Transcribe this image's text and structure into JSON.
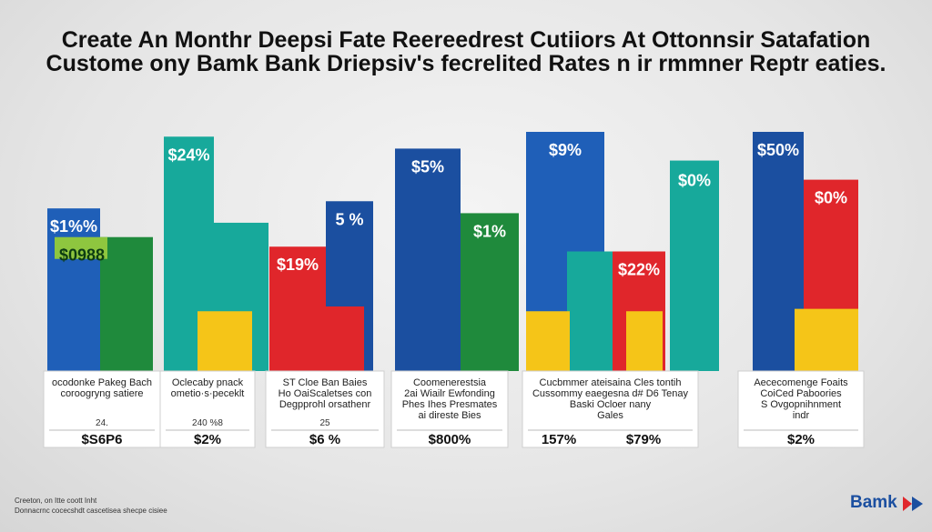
{
  "title_line1": "Create An Monthr Deepsi Fate Reereedrest Cutiiors At Ottonnsir Satafation",
  "title_line2": "Custome ony Bamk Bank Driepsiv's fecrelited Rates n ir rmmner Reptr eaties.",
  "colors": {
    "blue": "#1f5fb8",
    "green": "#1f8a3c",
    "lightgreen": "#8ec63f",
    "teal": "#17a99b",
    "red": "#e0262b",
    "yellow": "#f5c518",
    "navy": "#1b4fa0"
  },
  "chart_data": {
    "type": "bar",
    "title": "Create An Monthr Deepsi Fate Reereedrest Cutiiors At Ottonnsir Satafation",
    "ylim": [
      0,
      100
    ],
    "groups": [
      {
        "bars": [
          {
            "value": 68,
            "color": "blue",
            "label": "$1%%"
          },
          {
            "value": 56,
            "color": "green",
            "label": "$0988"
          }
        ],
        "card_lines": [
          "ocodonke Pakeg Bach",
          "coroogryng satiere"
        ],
        "card_small": "24.",
        "card_value": "$S6P6"
      },
      {
        "bars": [
          {
            "value": 98,
            "color": "teal",
            "label": "$24%"
          },
          {
            "value": 62,
            "color": "teal",
            "label": ""
          },
          {
            "value": 25,
            "color": "yellow",
            "label": ""
          }
        ],
        "card_lines": [
          "Oclecaby pnack",
          "ometio·s·peceklt"
        ],
        "card_small": "240  %8",
        "card_value": "$2%"
      },
      {
        "bars": [
          {
            "value": 52,
            "color": "red",
            "label": "$19%"
          },
          {
            "value": 71,
            "color": "navy",
            "label": "5 %"
          },
          {
            "value": 27,
            "color": "red",
            "label": ""
          }
        ],
        "card_lines": [
          "ST Cloe Ban Baies",
          "Ho OaiScaletses con",
          "Degpprohl orsathenr"
        ],
        "card_small": "25",
        "card_value": "$6 %"
      },
      {
        "bars": [
          {
            "value": 93,
            "color": "navy",
            "label": "$5%"
          },
          {
            "value": 66,
            "color": "green",
            "label": "$1%"
          }
        ],
        "card_lines": [
          "Coomenerestsia",
          "2ai Wiailr Ewfonding",
          "Phes Ihes Presmates",
          "ai direste Bies"
        ],
        "card_small": "",
        "card_value": "$800%"
      },
      {
        "bars": [
          {
            "value": 100,
            "color": "blue",
            "label": "$9%"
          },
          {
            "value": 50,
            "color": "teal",
            "label": ""
          },
          {
            "value": 50,
            "color": "red",
            "label": "$22%"
          },
          {
            "value": 25,
            "color": "yellow",
            "label": ""
          },
          {
            "value": 25,
            "color": "yellow",
            "label": ""
          }
        ],
        "extra_bar": {
          "value": 88,
          "color": "teal",
          "label": "$0%"
        },
        "card_lines": [
          "Cucbmmer ateisaina Cles tontih",
          "Cussommy eaegesna d# D6 Tenay",
          "Baski Ocloer nany",
          "Gales"
        ],
        "card_small": "",
        "card_value": "157%",
        "card_value2": "$79%"
      },
      {
        "bars": [
          {
            "value": 100,
            "color": "navy",
            "label": "$50%"
          },
          {
            "value": 80,
            "color": "red",
            "label": "$0%"
          },
          {
            "value": 26,
            "color": "yellow",
            "label": ""
          }
        ],
        "card_lines": [
          "Aececomenge Foaits",
          "CoiCed Paboories",
          "S Ovgopnihnment",
          "indr"
        ],
        "card_small": "",
        "card_value": "$2%"
      }
    ]
  },
  "footer": {
    "line1": "Creeton, on Itte coott Inht",
    "line2": "Donnacrnc cocecshdt cascetisea shecpe cisiee"
  },
  "brand": "Bamk"
}
